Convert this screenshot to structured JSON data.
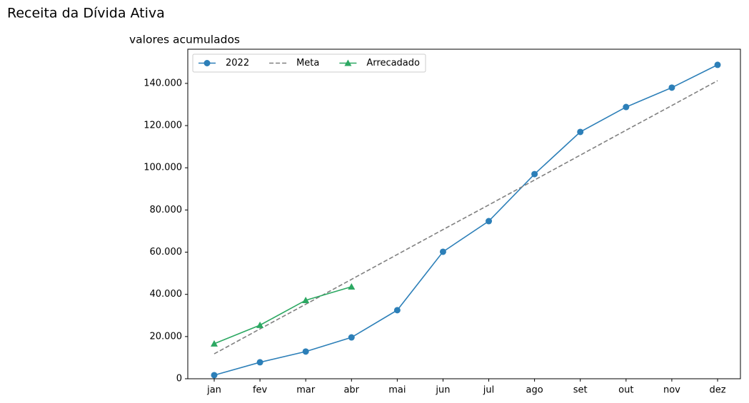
{
  "chart_data": {
    "type": "line",
    "title": "Receita da Dívida Ativa",
    "subtitle": "valores acumulados",
    "categories": [
      "jan",
      "fev",
      "mar",
      "abr",
      "mai",
      "jun",
      "jul",
      "ago",
      "set",
      "out",
      "nov",
      "dez"
    ],
    "series": [
      {
        "name": "2022",
        "color": "#2c7fb8",
        "marker": "circle",
        "linestyle": "solid",
        "values": [
          1700,
          7800,
          12900,
          19600,
          32500,
          60200,
          74700,
          97000,
          117000,
          128800,
          138000,
          148800
        ]
      },
      {
        "name": "Meta",
        "color": "#808080",
        "marker": "none",
        "linestyle": "dashed",
        "values": [
          11800,
          23600,
          35300,
          47100,
          58900,
          70700,
          82400,
          94200,
          106000,
          117800,
          129500,
          141300
        ]
      },
      {
        "name": "Arrecadado",
        "color": "#2ca862",
        "marker": "triangle",
        "linestyle": "solid",
        "values": [
          16600,
          25400,
          37200,
          43600,
          null,
          null,
          null,
          null,
          null,
          null,
          null,
          null
        ]
      }
    ],
    "ylim": [
      0,
      156200
    ],
    "yticks": [
      0,
      {
        "value": 20000,
        "label": "20.000"
      },
      {
        "value": 40000,
        "label": "40.000"
      },
      {
        "value": 60000,
        "label": "60.000"
      },
      {
        "value": 80000,
        "label": "80.000"
      },
      {
        "value": 100000,
        "label": "100.000"
      },
      {
        "value": 120000,
        "label": "120.000"
      },
      {
        "value": 140000,
        "label": "140.000"
      }
    ],
    "grid": false,
    "legend": "upper left"
  }
}
